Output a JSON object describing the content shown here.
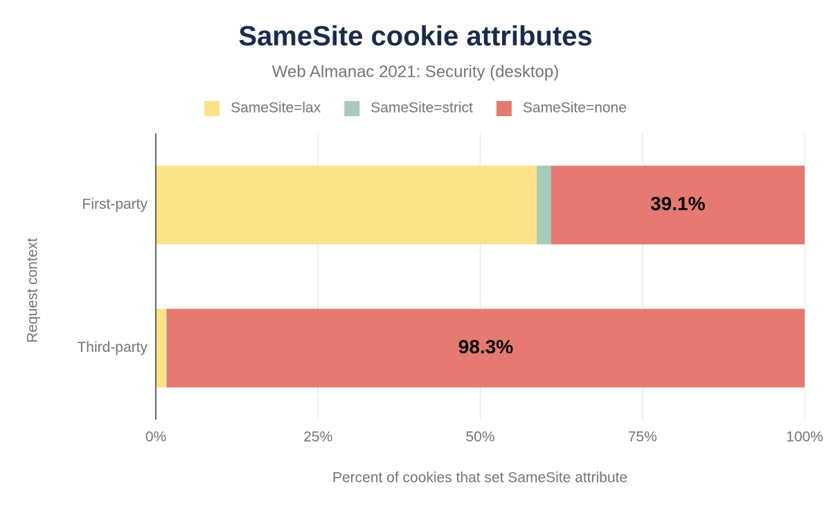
{
  "chart_data": {
    "type": "stacked-bar-horizontal",
    "title": "SameSite cookie attributes",
    "subtitle": "Web Almanac 2021: Security (desktop)",
    "x_label": "Percent of cookies that set SameSite attribute",
    "y_label": "Request context",
    "categories": [
      "First-party",
      "Third-party"
    ],
    "series": [
      {
        "name": "SameSite=lax",
        "color": "#fce38a",
        "values": [
          58.7,
          1.6
        ]
      },
      {
        "name": "SameSite=strict",
        "color": "#a8cbb7",
        "values": [
          2.2,
          0.1
        ]
      },
      {
        "name": "SameSite=none",
        "color": "#e67a72",
        "values": [
          39.1,
          98.3
        ],
        "value_labels": [
          "39.1%",
          "98.3%"
        ]
      }
    ],
    "xlim": [
      0,
      100
    ],
    "xticks": [
      {
        "value": 0,
        "label": "0%"
      },
      {
        "value": 25,
        "label": "25%"
      },
      {
        "value": 50,
        "label": "50%"
      },
      {
        "value": 75,
        "label": "75%"
      },
      {
        "value": 100,
        "label": "100%"
      }
    ],
    "grid": true,
    "legend": "top"
  }
}
